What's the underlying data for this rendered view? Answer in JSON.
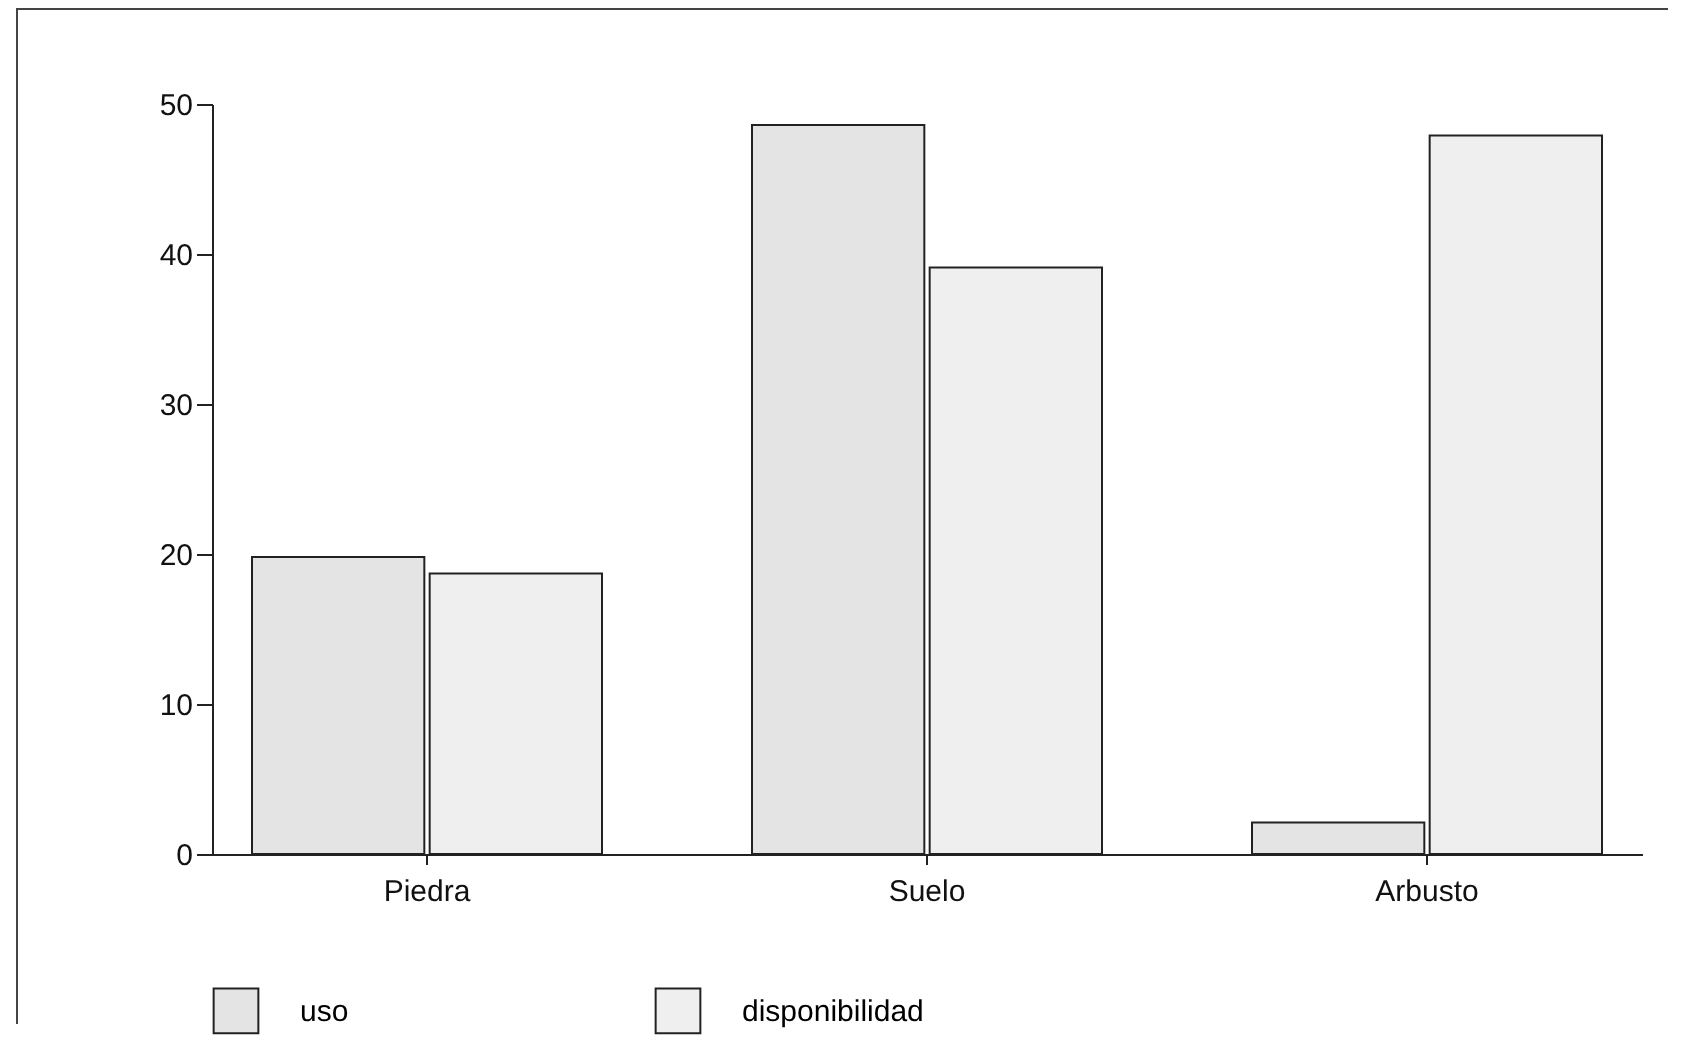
{
  "chart_data": {
    "type": "bar",
    "categories": [
      "Piedra",
      "Suelo",
      "Arbusto"
    ],
    "series": [
      {
        "name": "uso",
        "color": "#e4e4e4",
        "values": [
          19.8,
          48.6,
          2.1
        ]
      },
      {
        "name": "disponibilidad",
        "color": "#efefef",
        "values": [
          18.7,
          39.1,
          47.9
        ]
      }
    ],
    "ylim": [
      0,
      50
    ],
    "yticks": [
      0,
      10,
      20,
      30,
      40,
      50
    ],
    "grid": false,
    "legend": "bottom"
  }
}
